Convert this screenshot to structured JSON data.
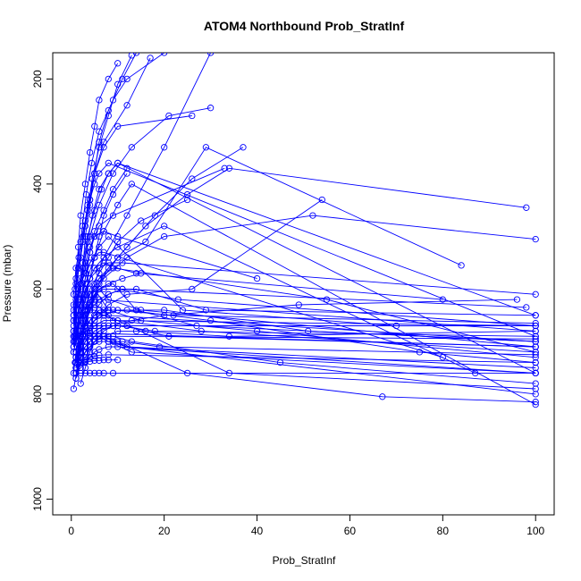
{
  "chart_data": {
    "type": "line",
    "title": "ATOM4 Northbound Prob_StratInf",
    "xlabel": "Prob_StratInf",
    "ylabel": "Pressure (mbar)",
    "xlim": [
      -4,
      104
    ],
    "ylim": [
      1030,
      150
    ],
    "y_reversed": true,
    "x_ticks": [
      0,
      20,
      40,
      60,
      80,
      100
    ],
    "y_ticks": [
      200,
      400,
      600,
      800,
      1000
    ],
    "grid": false,
    "series_color": "#0000ff",
    "marker": "open-circle",
    "series": [
      {
        "x": [
          0.5,
          1.5,
          2.5,
          3.5,
          5,
          7,
          12,
          20,
          30
        ],
        "y": [
          790,
          740,
          690,
          640,
          590,
          540,
          460,
          330,
          150
        ]
      },
      {
        "x": [
          1,
          2,
          3,
          4,
          5,
          6,
          8,
          15,
          100
        ],
        "y": [
          750,
          700,
          670,
          640,
          610,
          600,
          620,
          640,
          710
        ]
      },
      {
        "x": [
          0.8,
          2,
          3,
          5,
          8,
          12,
          18,
          26,
          37
        ],
        "y": [
          740,
          690,
          650,
          600,
          560,
          520,
          460,
          390,
          330
        ]
      },
      {
        "x": [
          0.5,
          1,
          2,
          3,
          4,
          6,
          9,
          55,
          100
        ],
        "y": [
          760,
          720,
          680,
          640,
          610,
          580,
          560,
          620,
          720
        ]
      },
      {
        "x": [
          1,
          2,
          4,
          6,
          10,
          16,
          25,
          34,
          98
        ],
        "y": [
          740,
          690,
          640,
          590,
          540,
          480,
          420,
          370,
          445
        ]
      },
      {
        "x": [
          1.5,
          2.5,
          3.5,
          5,
          7,
          12,
          20,
          52,
          100
        ],
        "y": [
          730,
          680,
          640,
          610,
          580,
          540,
          500,
          460,
          505
        ]
      },
      {
        "x": [
          0.5,
          1.5,
          3,
          5,
          7,
          10,
          13,
          100
        ],
        "y": [
          690,
          640,
          590,
          540,
          490,
          440,
          400,
          820
        ]
      },
      {
        "x": [
          1,
          2,
          3,
          4,
          6,
          9,
          14,
          27,
          100
        ],
        "y": [
          750,
          710,
          670,
          630,
          600,
          590,
          640,
          670,
          700
        ]
      },
      {
        "x": [
          0.5,
          1,
          2,
          3,
          5,
          8,
          15,
          40,
          100
        ],
        "y": [
          710,
          680,
          650,
          620,
          600,
          640,
          660,
          680,
          730
        ]
      },
      {
        "x": [
          2,
          3,
          4,
          5,
          7,
          10,
          25,
          67,
          100
        ],
        "y": [
          780,
          750,
          720,
          700,
          690,
          700,
          760,
          805,
          815
        ]
      },
      {
        "x": [
          1,
          2,
          3,
          4,
          6,
          8,
          11,
          98
        ],
        "y": [
          730,
          700,
          670,
          640,
          620,
          610,
          600,
          635
        ]
      },
      {
        "x": [
          0.5,
          1.5,
          2.5,
          4,
          6,
          9,
          13,
          21,
          30
        ],
        "y": [
          680,
          620,
          560,
          500,
          440,
          380,
          330,
          270,
          255
        ]
      },
      {
        "x": [
          1,
          2,
          3,
          5,
          7,
          10,
          20,
          51,
          100
        ],
        "y": [
          760,
          720,
          690,
          660,
          650,
          640,
          640,
          680,
          700
        ]
      },
      {
        "x": [
          0.5,
          1,
          2,
          3,
          4,
          5,
          7,
          12,
          17
        ],
        "y": [
          640,
          590,
          540,
          480,
          430,
          380,
          320,
          250,
          160
        ]
      },
      {
        "x": [
          1,
          2,
          3,
          4,
          6,
          10,
          16,
          29,
          84
        ],
        "y": [
          720,
          680,
          640,
          610,
          580,
          540,
          510,
          330,
          555
        ]
      },
      {
        "x": [
          0.8,
          1.6,
          2.4,
          3.2,
          4.4,
          6,
          9,
          12,
          20
        ],
        "y": [
          600,
          540,
          480,
          420,
          360,
          300,
          240,
          200,
          150
        ]
      },
      {
        "x": [
          1,
          2,
          3,
          4,
          5,
          6,
          8,
          13,
          100
        ],
        "y": [
          770,
          740,
          720,
          700,
          690,
          690,
          700,
          720,
          760
        ]
      },
      {
        "x": [
          0.5,
          1,
          2,
          3,
          4,
          6,
          8,
          24,
          70
        ],
        "y": [
          700,
          660,
          620,
          580,
          550,
          520,
          500,
          640,
          670
        ]
      },
      {
        "x": [
          1,
          2,
          4,
          6,
          8,
          11,
          14,
          29,
          100
        ],
        "y": [
          740,
          700,
          660,
          630,
          610,
          600,
          600,
          640,
          650
        ]
      },
      {
        "x": [
          0.5,
          1.5,
          2.5,
          3.5,
          4.5,
          6,
          8,
          10,
          100
        ],
        "y": [
          660,
          610,
          560,
          510,
          460,
          410,
          380,
          360,
          650
        ]
      },
      {
        "x": [
          1,
          2,
          3,
          4,
          5,
          7,
          10,
          14,
          80
        ],
        "y": [
          690,
          650,
          610,
          580,
          560,
          550,
          560,
          570,
          620
        ]
      },
      {
        "x": [
          1,
          3,
          5,
          7,
          9,
          12,
          16,
          21,
          100
        ],
        "y": [
          760,
          730,
          700,
          680,
          670,
          670,
          680,
          690,
          710
        ]
      },
      {
        "x": [
          0.5,
          1,
          2,
          3,
          5,
          7,
          10,
          23,
          100
        ],
        "y": [
          720,
          690,
          660,
          630,
          610,
          600,
          600,
          620,
          670
        ]
      },
      {
        "x": [
          1.5,
          2.5,
          3,
          4,
          5,
          6,
          8,
          11,
          14
        ],
        "y": [
          620,
          560,
          500,
          440,
          380,
          320,
          260,
          200,
          150
        ]
      },
      {
        "x": [
          1,
          2,
          3,
          5,
          8,
          12,
          30,
          75,
          100
        ],
        "y": [
          730,
          700,
          670,
          650,
          640,
          640,
          660,
          720,
          740
        ]
      },
      {
        "x": [
          0.5,
          1,
          2,
          3,
          4,
          5,
          6,
          9,
          33
        ],
        "y": [
          680,
          640,
          600,
          560,
          530,
          500,
          480,
          460,
          370
        ]
      },
      {
        "x": [
          1,
          2,
          3,
          4,
          6,
          8,
          12,
          26,
          54
        ],
        "y": [
          740,
          710,
          690,
          670,
          650,
          630,
          610,
          600,
          430
        ]
      },
      {
        "x": [
          0.8,
          1.6,
          2.5,
          3.5,
          5,
          7,
          10,
          20,
          87
        ],
        "y": [
          700,
          660,
          620,
          590,
          560,
          540,
          520,
          480,
          760
        ]
      },
      {
        "x": [
          1,
          2,
          3,
          4,
          5,
          7,
          9,
          12,
          100
        ],
        "y": [
          760,
          730,
          710,
          700,
          690,
          690,
          700,
          710,
          800
        ]
      },
      {
        "x": [
          0.5,
          1.5,
          2.5,
          3.5,
          5,
          6.5,
          8,
          10,
          100
        ],
        "y": [
          650,
          600,
          550,
          500,
          450,
          410,
          380,
          360,
          760
        ]
      },
      {
        "x": [
          1,
          2,
          3,
          4,
          5,
          6,
          8,
          11,
          15
        ],
        "y": [
          730,
          690,
          660,
          640,
          620,
          600,
          590,
          580,
          570
        ]
      },
      {
        "x": [
          1,
          2,
          4,
          6,
          9,
          13,
          20,
          49,
          96
        ],
        "y": [
          750,
          720,
          700,
          680,
          670,
          660,
          650,
          630,
          620
        ]
      },
      {
        "x": [
          0.5,
          1,
          2,
          3,
          4,
          5,
          7,
          9,
          100
        ],
        "y": [
          710,
          680,
          660,
          640,
          630,
          630,
          640,
          660,
          670
        ]
      },
      {
        "x": [
          1,
          2,
          3,
          5,
          7,
          10,
          14,
          34,
          100
        ],
        "y": [
          770,
          740,
          720,
          700,
          690,
          680,
          680,
          690,
          680
        ]
      },
      {
        "x": [
          0.5,
          1,
          1.5,
          2.5,
          3.5,
          5,
          7,
          10,
          26
        ],
        "y": [
          660,
          610,
          560,
          500,
          440,
          380,
          330,
          290,
          270
        ]
      },
      {
        "x": [
          1,
          2,
          3,
          4,
          5,
          6,
          8,
          100
        ],
        "y": [
          740,
          710,
          690,
          670,
          660,
          650,
          650,
          700
        ]
      },
      {
        "x": [
          1,
          2,
          3,
          4,
          6,
          8,
          10,
          15,
          25
        ],
        "y": [
          720,
          680,
          640,
          600,
          570,
          540,
          510,
          470,
          430
        ]
      },
      {
        "x": [
          0.5,
          1,
          2,
          3,
          4,
          6,
          8,
          11,
          100
        ],
        "y": [
          690,
          660,
          630,
          600,
          580,
          560,
          550,
          550,
          610
        ]
      },
      {
        "x": [
          1,
          2,
          3,
          4,
          5,
          7,
          10,
          18,
          100
        ],
        "y": [
          750,
          720,
          700,
          690,
          680,
          670,
          670,
          680,
          690
        ]
      },
      {
        "x": [
          0.5,
          1.5,
          2.5,
          3.5,
          4.5,
          6,
          8,
          10,
          13
        ],
        "y": [
          630,
          570,
          510,
          450,
          390,
          330,
          270,
          210,
          155
        ]
      },
      {
        "x": [
          1,
          2,
          3,
          5,
          7,
          9,
          13,
          45,
          100
        ],
        "y": [
          760,
          740,
          720,
          700,
          690,
          690,
          700,
          740,
          780
        ]
      },
      {
        "x": [
          0.8,
          1.6,
          2.4,
          3.2,
          4,
          5,
          7,
          9,
          12
        ],
        "y": [
          690,
          650,
          610,
          570,
          530,
          490,
          450,
          410,
          370
        ]
      },
      {
        "x": [
          1,
          2,
          3,
          4,
          5,
          6,
          9,
          22,
          100
        ],
        "y": [
          730,
          700,
          680,
          660,
          650,
          640,
          640,
          650,
          665
        ]
      },
      {
        "x": [
          1,
          2,
          3,
          4,
          6,
          8,
          11,
          19,
          100
        ],
        "y": [
          760,
          740,
          720,
          710,
          700,
          700,
          700,
          710,
          725
        ]
      },
      {
        "x": [
          0.5,
          1,
          2,
          3,
          4,
          5,
          7,
          10,
          40
        ],
        "y": [
          670,
          630,
          590,
          550,
          520,
          500,
          490,
          500,
          580
        ]
      },
      {
        "x": [
          1,
          2,
          3,
          4,
          5,
          6,
          8,
          12,
          100
        ],
        "y": [
          740,
          720,
          700,
          690,
          690,
          690,
          700,
          710,
          750
        ]
      },
      {
        "x": [
          0.5,
          1,
          2,
          3,
          4,
          5,
          6,
          8,
          100
        ],
        "y": [
          610,
          560,
          510,
          470,
          430,
          400,
          380,
          360,
          690
        ]
      },
      {
        "x": [
          1,
          2,
          3,
          4,
          5,
          7,
          10,
          28,
          100
        ],
        "y": [
          750,
          720,
          700,
          680,
          670,
          660,
          660,
          680,
          720
        ]
      },
      {
        "x": [
          1,
          2,
          3,
          4,
          5,
          6,
          7,
          9,
          12
        ],
        "y": [
          700,
          660,
          620,
          580,
          540,
          500,
          460,
          420,
          380
        ]
      },
      {
        "x": [
          0.5,
          1,
          1.5,
          2,
          3,
          4,
          5,
          6,
          100
        ],
        "y": [
          720,
          700,
          680,
          660,
          640,
          630,
          620,
          620,
          680
        ]
      },
      {
        "x": [
          1,
          1.5,
          2,
          3,
          4,
          5,
          6,
          8,
          10
        ],
        "y": [
          580,
          520,
          460,
          400,
          340,
          290,
          240,
          200,
          170
        ]
      },
      {
        "x": [
          1,
          2,
          3,
          4,
          5,
          6,
          8,
          10,
          100
        ],
        "y": [
          760,
          750,
          740,
          730,
          720,
          715,
          710,
          710,
          760
        ]
      },
      {
        "x": [
          0.5,
          1.5,
          2.5,
          3.5,
          5,
          7,
          10,
          34,
          100
        ],
        "y": [
          700,
          670,
          650,
          640,
          640,
          650,
          660,
          760,
          790
        ]
      },
      {
        "x": [
          1,
          2,
          3,
          4,
          5,
          6,
          7,
          8,
          100
        ],
        "y": [
          740,
          730,
          720,
          710,
          700,
          695,
          690,
          690,
          695
        ]
      },
      {
        "x": [
          0.5,
          1,
          2,
          3,
          4,
          5,
          6,
          7,
          80
        ],
        "y": [
          650,
          620,
          590,
          570,
          550,
          540,
          530,
          530,
          730
        ]
      },
      {
        "x": [
          1,
          2,
          3,
          4,
          5,
          6,
          8,
          100
        ],
        "y": [
          750,
          740,
          735,
          730,
          728,
          726,
          725,
          740
        ]
      },
      {
        "x": [
          1,
          2,
          3,
          4,
          5,
          6,
          7,
          9,
          100
        ],
        "y": [
          760,
          760,
          760,
          760,
          760,
          760,
          760,
          760,
          760
        ]
      },
      {
        "x": [
          1,
          2,
          3,
          4,
          5,
          6,
          7,
          8,
          10
        ],
        "y": [
          740,
          740,
          738,
          738,
          736,
          736,
          735,
          735,
          735
        ]
      },
      {
        "x": [
          0.5,
          1,
          1.5,
          2,
          2.5,
          3,
          3.5,
          4,
          100
        ],
        "y": [
          690,
          690,
          688,
          688,
          686,
          686,
          684,
          684,
          710
        ]
      },
      {
        "x": [
          2,
          3,
          4,
          5,
          6,
          8,
          12,
          100
        ],
        "y": [
          670,
          670,
          670,
          670,
          670,
          670,
          670,
          670
        ]
      }
    ]
  }
}
